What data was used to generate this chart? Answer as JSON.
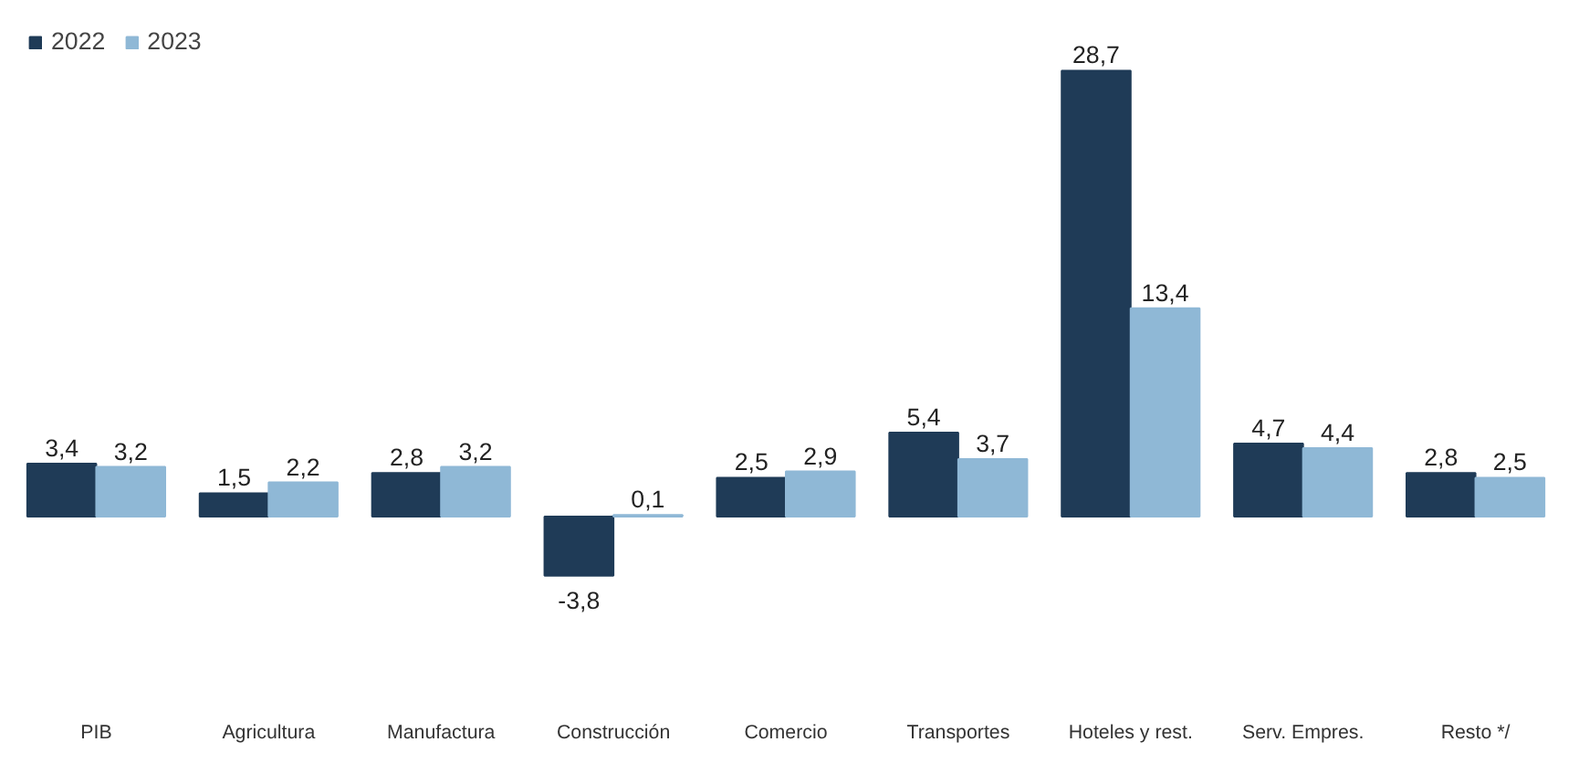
{
  "chart_data": {
    "type": "bar",
    "categories": [
      "PIB",
      "Agricultura",
      "Manufactura",
      "Construcción",
      "Comercio",
      "Transportes",
      "Hoteles y rest.",
      "Serv. Empres.",
      "Resto */"
    ],
    "series": [
      {
        "name": "2022",
        "color": "#1f3b57",
        "values": [
          3.4,
          1.5,
          2.8,
          -3.8,
          2.5,
          5.4,
          28.7,
          4.7,
          2.8
        ],
        "value_labels": [
          "3,4",
          "1,5",
          "2,8",
          "-3,8",
          "2,5",
          "5,4",
          "28,7",
          "4,7",
          "2,8"
        ]
      },
      {
        "name": "2023",
        "color": "#8fb8d6",
        "values": [
          3.2,
          2.2,
          3.2,
          0.1,
          2.9,
          3.7,
          13.4,
          4.4,
          2.5
        ],
        "value_labels": [
          "3,2",
          "2,2",
          "3,2",
          "0,1",
          "2,9",
          "3,7",
          "13,4",
          "4,4",
          "2,5"
        ]
      }
    ],
    "legend": "top left"
  }
}
